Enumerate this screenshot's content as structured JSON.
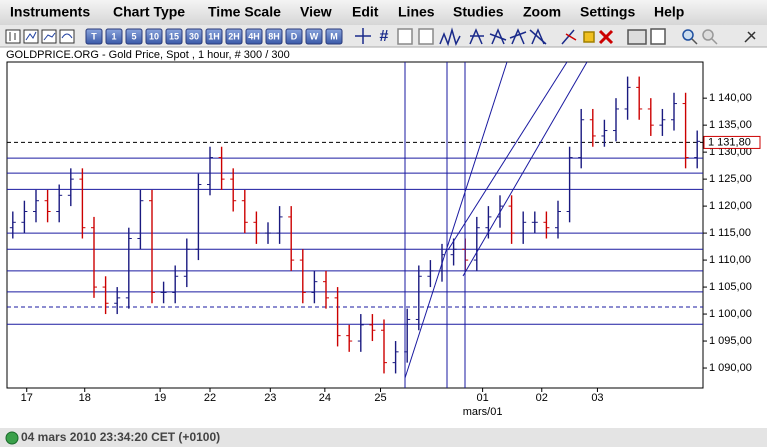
{
  "menu": [
    "Instruments",
    "Chart Type",
    "Time Scale",
    "View",
    "Edit",
    "Lines",
    "Studies",
    "Zoom",
    "Settings",
    "Help"
  ],
  "toolbar": [
    "T",
    "1",
    "5",
    "10",
    "15",
    "30",
    "1H",
    "2H",
    "4H",
    "8H",
    "D",
    "W",
    "M"
  ],
  "status": "04 mars 2010 23:34:20 CET (+0100)",
  "chart_data": {
    "type": "ohlc",
    "title": "GOLDPRICE.ORG - Gold Price, Spot , 1 hour, # 300 / 300",
    "up_color": "#1a1a80",
    "down_color": "#cc0000",
    "level_color": "#1a1aa0",
    "open": [
      1116,
      1117,
      1119,
      1121,
      1119,
      1122,
      1125,
      1116,
      1105,
      1102,
      1103,
      1114,
      1121,
      1104,
      1104,
      1107,
      1112,
      1124,
      1129,
      1125,
      1121,
      1117,
      1115,
      1115,
      1118,
      1110,
      1104,
      1106,
      1103,
      1096,
      1095,
      1098,
      1097,
      1091,
      1093,
      1099,
      1107,
      1108,
      1111,
      1112,
      1110,
      1116,
      1118,
      1120,
      1115,
      1117,
      1117,
      1116,
      1119,
      1129,
      1136,
      1133,
      1134,
      1138,
      1142,
      1138,
      1135,
      1136,
      1139,
      1129
    ],
    "high": [
      1119,
      1121,
      1123,
      1123,
      1124,
      1127,
      1127,
      1118,
      1107,
      1105,
      1116,
      1123,
      1123,
      1106,
      1109,
      1114,
      1126,
      1131,
      1131,
      1127,
      1123,
      1119,
      1117,
      1120,
      1120,
      1112,
      1108,
      1108,
      1105,
      1098,
      1100,
      1100,
      1099,
      1095,
      1101,
      1109,
      1110,
      1113,
      1114,
      1114,
      1118,
      1120,
      1122,
      1122,
      1119,
      1119,
      1119,
      1121,
      1131,
      1138,
      1138,
      1136,
      1140,
      1144,
      1144,
      1140,
      1138,
      1141,
      1141,
      1134
    ],
    "low": [
      1114,
      1115,
      1117,
      1117,
      1117,
      1120,
      1114,
      1103,
      1100,
      1100,
      1101,
      1112,
      1102,
      1102,
      1102,
      1105,
      1110,
      1122,
      1123,
      1119,
      1115,
      1113,
      1113,
      1113,
      1108,
      1102,
      1102,
      1101,
      1094,
      1093,
      1093,
      1095,
      1089,
      1089,
      1091,
      1097,
      1105,
      1106,
      1109,
      1108,
      1108,
      1114,
      1116,
      1113,
      1113,
      1115,
      1114,
      1114,
      1117,
      1127,
      1131,
      1131,
      1132,
      1136,
      1136,
      1133,
      1133,
      1134,
      1127,
      1127
    ],
    "close": [
      1117,
      1119,
      1121,
      1119,
      1122,
      1125,
      1116,
      1105,
      1102,
      1103,
      1114,
      1121,
      1104,
      1104,
      1107,
      1112,
      1124,
      1129,
      1125,
      1121,
      1117,
      1115,
      1115,
      1118,
      1110,
      1104,
      1106,
      1103,
      1096,
      1095,
      1098,
      1097,
      1091,
      1093,
      1099,
      1107,
      1108,
      1111,
      1112,
      1110,
      1116,
      1118,
      1120,
      1115,
      1117,
      1117,
      1116,
      1119,
      1129,
      1136,
      1133,
      1134,
      1138,
      1142,
      1138,
      1135,
      1136,
      1139,
      1129,
      1132
    ],
    "xlim": [
      -0.5,
      59.5
    ],
    "xticks": [
      {
        "value": 1.2,
        "label": "17"
      },
      {
        "value": 6.2,
        "label": "18"
      },
      {
        "value": 12.7,
        "label": "19"
      },
      {
        "value": 17,
        "label": "22"
      },
      {
        "value": 22.2,
        "label": "23"
      },
      {
        "value": 26.9,
        "label": "24"
      },
      {
        "value": 31.7,
        "label": "25"
      },
      {
        "value": 40.5,
        "label": "01"
      },
      {
        "value": 45.6,
        "label": "02"
      },
      {
        "value": 50.4,
        "label": "03"
      }
    ],
    "month_label": {
      "value": 40.5,
      "label": "mars/01"
    },
    "ylim": [
      1086.3,
      1146.7
    ],
    "yticks": [
      {
        "value": 1090,
        "label": "1 090,00"
      },
      {
        "value": 1095,
        "label": "1 095,00"
      },
      {
        "value": 1100,
        "label": "1 100,00",
        "label_color": "#0000cc"
      },
      {
        "value": 1105,
        "label": "1 105,00"
      },
      {
        "value": 1110,
        "label": "1 110,00"
      },
      {
        "value": 1115,
        "label": "1 115,00"
      },
      {
        "value": 1120,
        "label": "1 120,00"
      },
      {
        "value": 1125,
        "label": "1 125,00"
      },
      {
        "value": 1130,
        "label": "1 130,00"
      },
      {
        "value": 1135,
        "label": "1 135,00"
      },
      {
        "value": 1140,
        "label": "1 140,00"
      }
    ],
    "levels": [
      1128.9,
      1126.1,
      1123.1,
      1115,
      1112,
      1108,
      1104.1,
      1098.1
    ],
    "dashed_levels": [
      1101.3
    ],
    "price_marker": {
      "value": 1131.8,
      "label": "1 131,80"
    }
  }
}
